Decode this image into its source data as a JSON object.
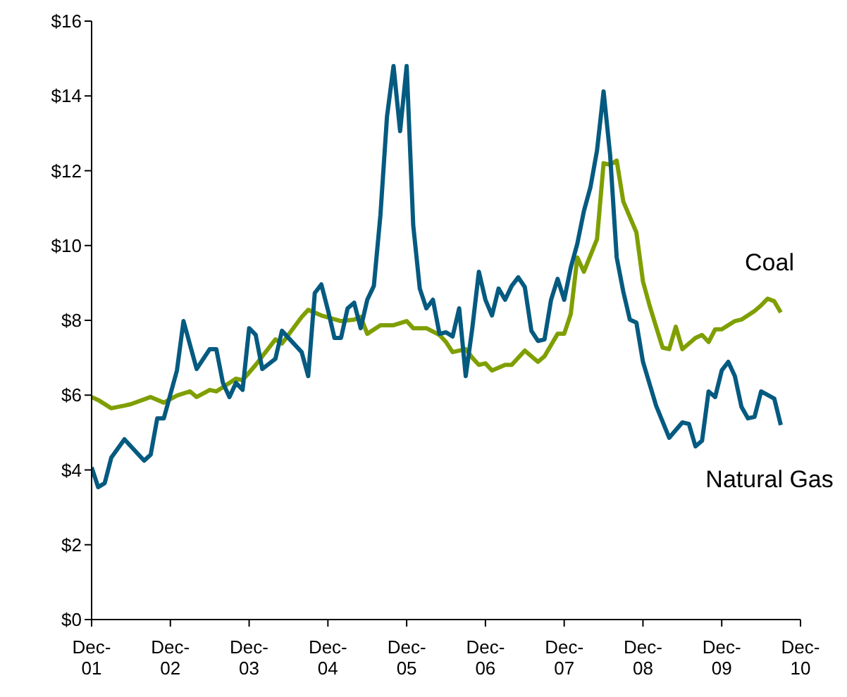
{
  "chart_data": {
    "type": "line",
    "xlim": [
      "2001-12",
      "2010-12"
    ],
    "xticks": [
      {
        "value": "2001-12",
        "label": "Dec-01"
      },
      {
        "value": "2002-12",
        "label": "Dec-02"
      },
      {
        "value": "2003-12",
        "label": "Dec-03"
      },
      {
        "value": "2004-12",
        "label": "Dec-04"
      },
      {
        "value": "2005-12",
        "label": "Dec-05"
      },
      {
        "value": "2006-12",
        "label": "Dec-06"
      },
      {
        "value": "2007-12",
        "label": "Dec-07"
      },
      {
        "value": "2008-12",
        "label": "Dec-08"
      },
      {
        "value": "2009-12",
        "label": "Dec-09"
      },
      {
        "value": "2010-12",
        "label": "Dec-10"
      }
    ],
    "ylim": [
      0,
      16
    ],
    "yticks": [
      {
        "value": 0,
        "label": "$0"
      },
      {
        "value": 2,
        "label": "$2"
      },
      {
        "value": 4,
        "label": "$4"
      },
      {
        "value": 6,
        "label": "$6"
      },
      {
        "value": 8,
        "label": "$8"
      },
      {
        "value": 10,
        "label": "$10"
      },
      {
        "value": 12,
        "label": "$12"
      },
      {
        "value": 14,
        "label": "$14"
      },
      {
        "value": 16,
        "label": "$16"
      }
    ],
    "grid": false,
    "legend": false,
    "marker": "none",
    "line_style": "solid",
    "series": [
      {
        "name": "Coal",
        "color": "#7f9f00",
        "x": [
          "2001-12",
          "2002-01",
          "2002-03",
          "2002-05",
          "2002-06",
          "2002-09",
          "2002-11",
          "2003-01",
          "2003-03",
          "2003-04",
          "2003-06",
          "2003-07",
          "2003-10",
          "2003-11",
          "2004-01",
          "2004-04",
          "2004-05",
          "2004-08",
          "2004-09",
          "2004-11",
          "2005-02",
          "2005-04",
          "2005-05",
          "2005-06",
          "2005-08",
          "2005-10",
          "2005-12",
          "2006-01",
          "2006-03",
          "2006-05",
          "2006-06",
          "2006-07",
          "2006-09",
          "2006-10",
          "2006-11",
          "2006-12",
          "2007-01",
          "2007-03",
          "2007-04",
          "2007-06",
          "2007-08",
          "2007-09",
          "2007-11",
          "2007-12",
          "2008-01",
          "2008-02",
          "2008-03",
          "2008-05",
          "2008-06",
          "2008-07",
          "2008-08",
          "2008-09",
          "2008-11",
          "2008-12",
          "2009-01",
          "2009-02",
          "2009-03",
          "2009-04",
          "2009-05",
          "2009-06",
          "2009-08",
          "2009-09",
          "2009-10",
          "2009-11",
          "2009-12",
          "2010-02",
          "2010-03",
          "2010-05",
          "2010-06",
          "2010-07",
          "2010-08",
          "2010-09"
        ],
        "values": [
          5.95,
          5.87,
          5.65,
          5.72,
          5.76,
          5.95,
          5.8,
          5.99,
          6.1,
          5.95,
          6.14,
          6.1,
          6.44,
          6.4,
          6.81,
          7.49,
          7.38,
          8.09,
          8.28,
          8.13,
          7.98,
          8.02,
          8.09,
          7.64,
          7.87,
          7.87,
          7.98,
          7.79,
          7.79,
          7.61,
          7.42,
          7.15,
          7.23,
          7.0,
          6.81,
          6.85,
          6.66,
          6.81,
          6.81,
          7.19,
          6.89,
          7.04,
          7.64,
          7.64,
          8.17,
          9.68,
          9.3,
          10.17,
          12.2,
          12.16,
          12.27,
          11.18,
          10.35,
          9.04,
          8.4,
          7.83,
          7.27,
          7.23,
          7.83,
          7.23,
          7.53,
          7.61,
          7.42,
          7.76,
          7.76,
          7.98,
          8.02,
          8.25,
          8.4,
          8.58,
          8.51,
          8.21
        ]
      },
      {
        "name": "Natural Gas",
        "color": "#055a80",
        "x": [
          "2001-12",
          "2002-01",
          "2002-02",
          "2002-03",
          "2002-05",
          "2002-08",
          "2002-09",
          "2002-10",
          "2002-11",
          "2003-01",
          "2003-02",
          "2003-04",
          "2003-06",
          "2003-07",
          "2003-08",
          "2003-09",
          "2003-10",
          "2003-11",
          "2003-12",
          "2004-01",
          "2004-02",
          "2004-04",
          "2004-05",
          "2004-08",
          "2004-09",
          "2004-10",
          "2004-11",
          "2004-12",
          "2005-01",
          "2005-02",
          "2005-03",
          "2005-04",
          "2005-05",
          "2005-06",
          "2005-07",
          "2005-08",
          "2005-09",
          "2005-10",
          "2005-11",
          "2005-12",
          "2006-01",
          "2006-02",
          "2006-03",
          "2006-04",
          "2006-05",
          "2006-06",
          "2006-07",
          "2006-08",
          "2006-09",
          "2006-10",
          "2006-11",
          "2006-12",
          "2007-01",
          "2007-02",
          "2007-03",
          "2007-04",
          "2007-05",
          "2007-06",
          "2007-07",
          "2007-08",
          "2007-09",
          "2007-10",
          "2007-11",
          "2007-12",
          "2008-01",
          "2008-02",
          "2008-03",
          "2008-04",
          "2008-05",
          "2008-06",
          "2008-07",
          "2008-08",
          "2008-09",
          "2008-10",
          "2008-11",
          "2008-12",
          "2009-02",
          "2009-04",
          "2009-06",
          "2009-07",
          "2009-08",
          "2009-09",
          "2009-10",
          "2009-11",
          "2009-12",
          "2010-01",
          "2010-02",
          "2010-03",
          "2010-04",
          "2010-05",
          "2010-06",
          "2010-08",
          "2010-09"
        ],
        "values": [
          4.07,
          3.54,
          3.65,
          4.33,
          4.82,
          4.25,
          4.41,
          5.38,
          5.38,
          6.66,
          7.98,
          6.7,
          7.23,
          7.23,
          6.33,
          5.95,
          6.33,
          6.14,
          7.79,
          7.61,
          6.7,
          6.97,
          7.72,
          7.15,
          6.51,
          8.73,
          8.96,
          8.28,
          7.53,
          7.53,
          8.32,
          8.47,
          7.79,
          8.55,
          8.92,
          10.81,
          13.44,
          14.8,
          13.06,
          14.8,
          10.54,
          8.85,
          8.32,
          8.55,
          7.64,
          7.68,
          7.57,
          8.32,
          6.51,
          7.79,
          9.3,
          8.55,
          8.13,
          8.85,
          8.55,
          8.92,
          9.15,
          8.89,
          7.72,
          7.45,
          7.49,
          8.55,
          9.11,
          8.55,
          9.41,
          10.05,
          10.92,
          11.56,
          12.54,
          14.12,
          12.42,
          9.68,
          8.77,
          8.02,
          7.94,
          6.89,
          5.72,
          4.86,
          5.27,
          5.23,
          4.63,
          4.78,
          6.1,
          5.95,
          6.66,
          6.89,
          6.51,
          5.69,
          5.38,
          5.42,
          6.1,
          5.91,
          5.2
        ]
      }
    ]
  }
}
